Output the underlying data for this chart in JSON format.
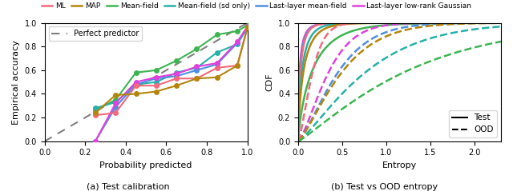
{
  "colors": {
    "ML": "#f4697b",
    "MAP": "#b5850b",
    "MeanField": "#3cb550",
    "MeanFieldSd": "#27b0aa",
    "LastLayerMF": "#4d8fe0",
    "LastLayerLRG": "#e040dd"
  },
  "legend_labels": [
    "ML",
    "MAP",
    "Mean-field",
    "Mean-field (sd only)",
    "Last-layer mean-field",
    "Last-layer low-rank Gaussian"
  ],
  "calib_xlabel": "Probability predicted",
  "calib_ylabel": "Empirical accuracy",
  "entropy_xlabel": "Entropy",
  "entropy_ylabel": "CDF",
  "subplot_titles": [
    "(a) Test calibration",
    "(b) Test vs OOD entropy"
  ],
  "figsize": [
    6.4,
    2.39
  ],
  "dpi": 100,
  "calib_data": {
    "MeanField": {
      "x": [
        0.25,
        0.35,
        0.45,
        0.55,
        0.65,
        0.75,
        0.85,
        0.95,
        1.0
      ],
      "y": [
        0.26,
        0.35,
        0.58,
        0.6,
        0.68,
        0.78,
        0.9,
        0.93,
        0.98
      ]
    },
    "MeanFieldSd": {
      "x": [
        0.25,
        0.35,
        0.45,
        0.55,
        0.65,
        0.75,
        0.85,
        0.95,
        1.0
      ],
      "y": [
        0.28,
        0.33,
        0.48,
        0.5,
        0.58,
        0.62,
        0.75,
        0.82,
        0.96
      ]
    },
    "LastLayerMF": {
      "x": [
        0.25,
        0.35,
        0.45,
        0.55,
        0.65,
        0.75,
        0.85,
        0.95,
        1.0
      ],
      "y": [
        0.0,
        0.29,
        0.48,
        0.53,
        0.55,
        0.6,
        0.65,
        0.83,
        0.96
      ]
    },
    "LastLayerLRG": {
      "x": [
        0.25,
        0.35,
        0.45,
        0.55,
        0.65,
        0.75,
        0.85,
        0.95,
        1.0
      ],
      "y": [
        0.0,
        0.32,
        0.5,
        0.54,
        0.57,
        0.63,
        0.66,
        0.84,
        0.97
      ]
    },
    "ML": {
      "x": [
        0.25,
        0.35,
        0.45,
        0.55,
        0.65,
        0.75,
        0.85,
        0.95,
        1.0
      ],
      "y": [
        0.22,
        0.24,
        0.47,
        0.47,
        0.53,
        0.53,
        0.62,
        0.64,
        0.96
      ]
    },
    "MAP": {
      "x": [
        0.25,
        0.35,
        0.45,
        0.55,
        0.65,
        0.75,
        0.85,
        0.95,
        1.0
      ],
      "y": [
        0.24,
        0.39,
        0.4,
        0.42,
        0.47,
        0.53,
        0.54,
        0.64,
        0.96
      ]
    }
  },
  "cdf_test": {
    "ML": {
      "scale": 0.03,
      "shape": 0.7
    },
    "MAP": {
      "scale": 0.07,
      "shape": 0.75
    },
    "MeanField": {
      "scale": 0.18,
      "shape": 0.8
    },
    "MeanFieldSd": {
      "scale": 0.05,
      "shape": 0.72
    },
    "LastLayerMF": {
      "scale": 0.025,
      "shape": 0.65
    },
    "LastLayerLRG": {
      "scale": 0.02,
      "shape": 0.6
    }
  },
  "cdf_ood": {
    "ML": {
      "scale": 0.18,
      "shape": 1.4
    },
    "MAP": {
      "scale": 0.55,
      "shape": 1.3
    },
    "MeanField": {
      "scale": 1.35,
      "shape": 1.15
    },
    "MeanFieldSd": {
      "scale": 0.85,
      "shape": 1.25
    },
    "LastLayerMF": {
      "scale": 0.5,
      "shape": 1.35
    },
    "LastLayerLRG": {
      "scale": 0.38,
      "shape": 1.4
    }
  }
}
